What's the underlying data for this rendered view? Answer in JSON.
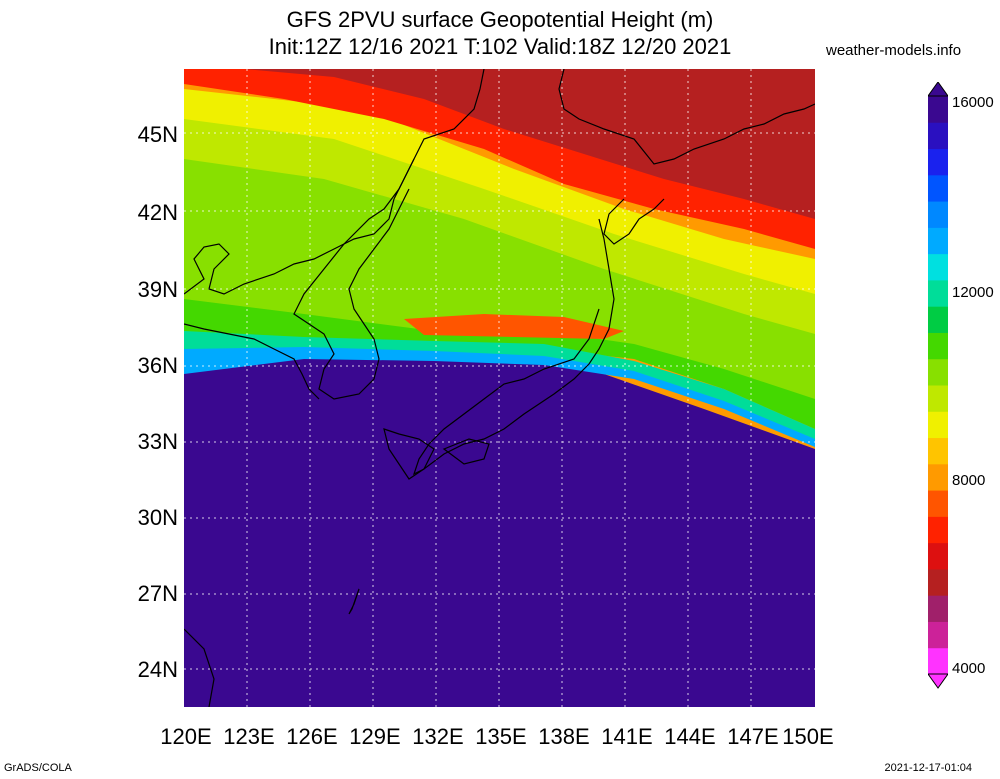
{
  "title_line1": "GFS 2PVU surface Geopotential Height (m)",
  "title_line2": "Init:12Z 12/16 2021 T:102 Valid:18Z 12/20 2021",
  "brand": "weather-models.info",
  "footer_left": "GrADS/COLA",
  "footer_right": "2021-12-17-01:04",
  "lat_labels": [
    "45N",
    "42N",
    "39N",
    "36N",
    "33N",
    "30N",
    "27N",
    "24N"
  ],
  "lon_labels": [
    "120E",
    "123E",
    "126E",
    "129E",
    "132E",
    "135E",
    "138E",
    "141E",
    "144E",
    "147E",
    "150E"
  ],
  "colorbar": {
    "labels": [
      "16000",
      "12000",
      "8000",
      "4000"
    ],
    "colors": [
      "#ff33ff",
      "#cc2299",
      "#a0206a",
      "#b52020",
      "#dd1010",
      "#ff2200",
      "#ff5500",
      "#ff9a00",
      "#ffc400",
      "#f0f000",
      "#bfe800",
      "#88e000",
      "#44d800",
      "#00cc44",
      "#00dd99",
      "#00e0e0",
      "#00aaff",
      "#0088ff",
      "#0055ff",
      "#1a22ee",
      "#2a10c0",
      "#3a0890"
    ]
  }
}
